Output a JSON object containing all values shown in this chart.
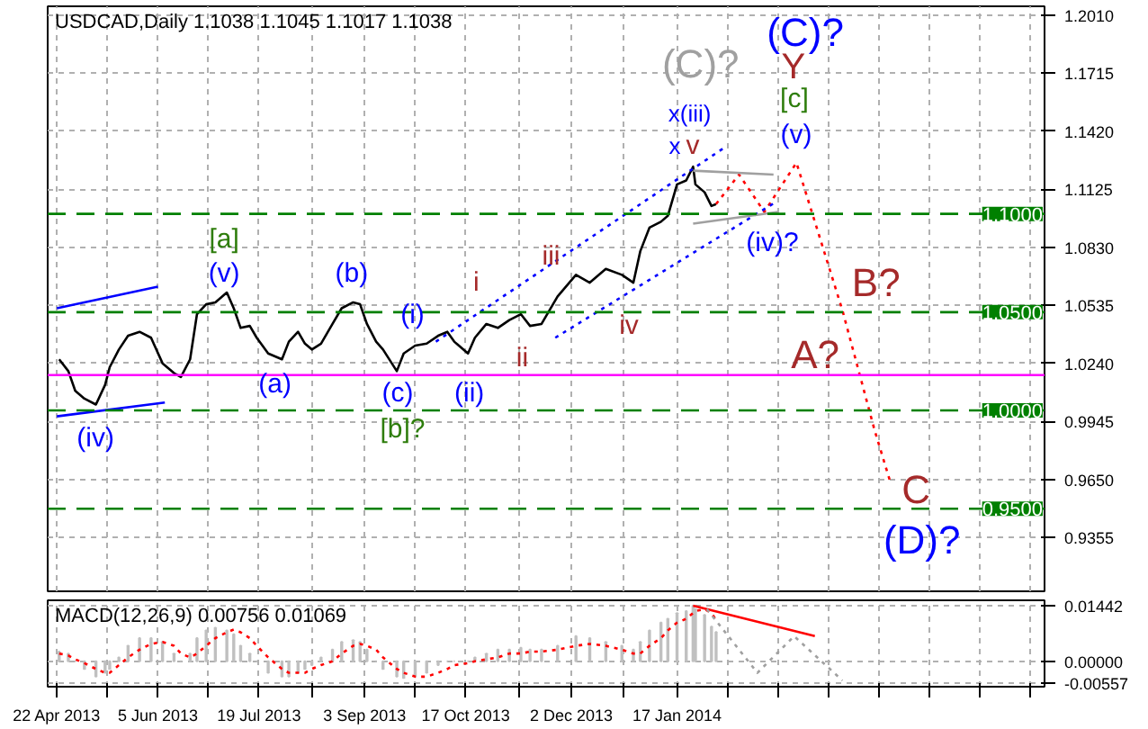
{
  "chart_data": [
    {
      "type": "line",
      "title": "USDCAD,Daily  1.1038 1.1045 1.1017 1.1038",
      "x": [
        "2013-04-23",
        "2013-04-27",
        "2013-04-30",
        "2013-05-04",
        "2013-05-09",
        "2013-05-13",
        "2013-05-15",
        "2013-05-19",
        "2013-05-23",
        "2013-05-28",
        "2013-06-02",
        "2013-06-07",
        "2013-06-12",
        "2013-06-15",
        "2013-06-19",
        "2013-06-22",
        "2013-06-26",
        "2013-06-30",
        "2013-07-05",
        "2013-07-08",
        "2013-07-11",
        "2013-07-15",
        "2013-07-18",
        "2013-07-23",
        "2013-07-29",
        "2013-08-01",
        "2013-08-05",
        "2013-08-08",
        "2013-08-11",
        "2013-08-15",
        "2013-08-20",
        "2013-08-24",
        "2013-08-29",
        "2013-09-01",
        "2013-09-04",
        "2013-09-08",
        "2013-09-11",
        "2013-09-17",
        "2013-09-20",
        "2013-09-25",
        "2013-09-30",
        "2013-10-05",
        "2013-10-09",
        "2013-10-12",
        "2013-10-18",
        "2013-10-21",
        "2013-10-26",
        "2013-10-31",
        "2013-11-05",
        "2013-11-10",
        "2013-11-14",
        "2013-11-19",
        "2013-11-26",
        "2013-12-04",
        "2013-12-10",
        "2013-12-17",
        "2013-12-24",
        "2013-12-29",
        "2014-01-01",
        "2014-01-05",
        "2014-01-10",
        "2014-01-13",
        "2014-01-17",
        "2014-01-21",
        "2014-01-24",
        "2014-01-25",
        "2014-01-29",
        "2014-02-01",
        "2014-02-03"
      ],
      "series": [
        {
          "color": "#000000",
          "values": [
            1.026,
            1.02,
            1.01,
            1.006,
            1.003,
            1.013,
            1.022,
            1.031,
            1.038,
            1.04,
            1.037,
            1.024,
            1.019,
            1.017,
            1.026,
            1.049,
            1.054,
            1.055,
            1.06,
            1.052,
            1.042,
            1.043,
            1.037,
            1.029,
            1.026,
            1.035,
            1.04,
            1.034,
            1.031,
            1.034,
            1.044,
            1.052,
            1.055,
            1.054,
            1.044,
            1.035,
            1.031,
            1.02,
            1.029,
            1.033,
            1.034,
            1.038,
            1.04,
            1.035,
            1.029,
            1.037,
            1.044,
            1.042,
            1.046,
            1.049,
            1.043,
            1.044,
            1.058,
            1.069,
            1.065,
            1.072,
            1.069,
            1.065,
            1.081,
            1.093,
            1.096,
            1.099,
            1.115,
            1.117,
            1.124,
            1.115,
            1.111,
            1.104,
            1.105
          ]
        },
        {
          "type": "line",
          "color": "#ff0000",
          "line_style": "dotted",
          "x": [
            "2014-02-03",
            "2014-02-13",
            "2014-02-24",
            "2014-03-10",
            "2014-03-30",
            "2014-04-13",
            "2014-04-20"
          ],
          "values": [
            1.105,
            1.12,
            1.101,
            1.126,
            1.051,
            0.99,
            0.963
          ]
        },
        {
          "type": "line",
          "color": "#0000ff",
          "line_style": "dotted",
          "x": [
            "2013-10-04",
            "2014-02-07"
          ],
          "values": [
            1.035,
            1.134
          ]
        },
        {
          "type": "line",
          "color": "#0000ff",
          "line_style": "dotted",
          "x": [
            "2013-11-25",
            "2014-03-01"
          ],
          "values": [
            1.037,
            1.106
          ]
        },
        {
          "type": "line",
          "color": "#0000ff",
          "line_style": "solid",
          "x": [
            "2013-04-22",
            "2013-06-05"
          ],
          "values": [
            1.052,
            1.063
          ]
        },
        {
          "type": "line",
          "color": "#0000ff",
          "line_style": "solid",
          "x": [
            "2013-04-22",
            "2013-06-08"
          ],
          "values": [
            0.997,
            1.004
          ]
        },
        {
          "type": "line",
          "color": "#a0a0a0",
          "line_style": "solid",
          "x": [
            "2014-01-24",
            "2014-02-28"
          ],
          "values": [
            1.122,
            1.12
          ]
        },
        {
          "type": "line",
          "color": "#a0a0a0",
          "line_style": "solid",
          "x": [
            "2014-01-24",
            "2014-03-02"
          ],
          "values": [
            1.095,
            1.101
          ]
        }
      ],
      "xlim": [
        "2013-04-18",
        "2014-06-26"
      ],
      "ylim": [
        0.908,
        1.2056
      ],
      "xticks": [
        {
          "value": "2013-04-22",
          "label": null
        },
        {
          "value": "2013-05-14",
          "label": null
        },
        {
          "value": "2013-06-05",
          "label": null
        },
        {
          "value": "2013-06-27",
          "label": null
        },
        {
          "value": "2013-07-19",
          "label": null
        },
        {
          "value": "2013-08-11",
          "label": null
        },
        {
          "value": "2013-09-03",
          "label": null
        },
        {
          "value": "2013-09-25",
          "label": null
        },
        {
          "value": "2013-10-17",
          "label": null
        },
        {
          "value": "2013-11-09",
          "label": null
        },
        {
          "value": "2013-12-02",
          "label": null
        },
        {
          "value": "2013-12-25",
          "label": null
        },
        {
          "value": "2014-01-17",
          "label": null
        },
        {
          "value": "2014-02-08",
          "label": null
        },
        {
          "value": "2014-03-02",
          "label": null
        },
        {
          "value": "2014-03-24",
          "label": null
        },
        {
          "value": "2014-04-15",
          "label": null
        },
        {
          "value": "2014-05-07",
          "label": null
        },
        {
          "value": "2014-05-29",
          "label": null
        },
        {
          "value": "2014-06-20",
          "label": null
        }
      ],
      "yticks": [
        {
          "value": 1.201,
          "label": "1.2010"
        },
        {
          "value": 1.1715,
          "label": "1.1715"
        },
        {
          "value": 1.142,
          "label": "1.1420"
        },
        {
          "value": 1.1125,
          "label": "1.1125"
        },
        {
          "value": 1.083,
          "label": "1.0830"
        },
        {
          "value": 1.0535,
          "label": "1.0535"
        },
        {
          "value": 1.024,
          "label": "1.0240"
        },
        {
          "value": 0.9945,
          "label": "0.9945"
        },
        {
          "value": 0.965,
          "label": "0.9650"
        },
        {
          "value": 0.9355,
          "label": "0.9355"
        }
      ],
      "tick_labels": "y",
      "grid": true,
      "ref_lines": [
        {
          "axis": "y",
          "value": 1.1,
          "label": "1.1000",
          "color": "#008000",
          "line_style": "dashed"
        },
        {
          "axis": "y",
          "value": 1.05,
          "label": "1.0500",
          "color": "#008000",
          "line_style": "dashed"
        },
        {
          "axis": "y",
          "value": 1.0,
          "label": "1.0000",
          "color": "#008000",
          "line_style": "dashed"
        },
        {
          "axis": "y",
          "value": 0.95,
          "label": "0.9500",
          "color": "#008000",
          "line_style": "dashed"
        },
        {
          "axis": "y",
          "value": 1.018,
          "color": "#ff00ff",
          "line_style": "solid"
        }
      ],
      "annotations": [
        "(iv)",
        "[a]",
        "(v)",
        "(a)",
        "(b)",
        "(i)",
        "(c)",
        "[b]?",
        "(ii)",
        "i",
        "ii",
        "iii",
        "iv",
        "x(iii)",
        "x",
        "v",
        "(C)?",
        "(C)?",
        "Y",
        "[c]",
        "(v)",
        "(iv)?",
        "B?",
        "A?",
        "C",
        "(D)?"
      ]
    },
    {
      "type": "bar",
      "title": "MACD(12,26,9) 0.00756 0.01069",
      "x": [
        "2013-04-23",
        "2013-04-27",
        "2013-04-30",
        "2013-05-04",
        "2013-05-09",
        "2013-05-13",
        "2013-05-15",
        "2013-05-19",
        "2013-05-23",
        "2013-05-28",
        "2013-06-02",
        "2013-06-07",
        "2013-06-12",
        "2013-06-15",
        "2013-06-19",
        "2013-06-22",
        "2013-06-26",
        "2013-06-30",
        "2013-07-05",
        "2013-07-08",
        "2013-07-11",
        "2013-07-15",
        "2013-07-18",
        "2013-07-23",
        "2013-07-29",
        "2013-08-01",
        "2013-08-05",
        "2013-08-08",
        "2013-08-11",
        "2013-08-15",
        "2013-08-20",
        "2013-08-24",
        "2013-08-29",
        "2013-09-01",
        "2013-09-04",
        "2013-09-08",
        "2013-09-11",
        "2013-09-17",
        "2013-09-20",
        "2013-09-25",
        "2013-09-30",
        "2013-10-05",
        "2013-10-09",
        "2013-10-12",
        "2013-10-18",
        "2013-10-21",
        "2013-10-26",
        "2013-10-31",
        "2013-11-05",
        "2013-11-10",
        "2013-11-14",
        "2013-11-19",
        "2013-11-26",
        "2013-12-04",
        "2013-12-10",
        "2013-12-17",
        "2013-12-24",
        "2013-12-29",
        "2014-01-01",
        "2014-01-05",
        "2014-01-10",
        "2014-01-13",
        "2014-01-17",
        "2014-01-21",
        "2014-01-24",
        "2014-01-25",
        "2014-01-29",
        "2014-02-01",
        "2014-02-03"
      ],
      "series": [
        {
          "color": "#c0c0c0",
          "values": [
            0.0025,
            0.002,
            0,
            -0.002,
            -0.004,
            -0.003,
            -0.002,
            0.001,
            0.004,
            0.006,
            0.006,
            0.005,
            0.002,
            0,
            0.002,
            0.006,
            0.008,
            0.0087,
            0.008,
            0.007,
            0.004,
            0.002,
            0,
            -0.003,
            -0.004,
            -0.004,
            -0.003,
            -0.002,
            -0.001,
            0.001,
            0.003,
            0.005,
            0.0055,
            0.005,
            0.003,
            0,
            -0.002,
            -0.004,
            -0.0043,
            -0.004,
            -0.003,
            -0.001,
            0,
            0,
            0,
            0.001,
            0.002,
            0.003,
            0.003,
            0.0035,
            0.003,
            0.003,
            0.004,
            0.0065,
            0.006,
            0.005,
            0.004,
            0.003,
            0.005,
            0.008,
            0.01,
            0.011,
            0.0125,
            0.013,
            0.0144,
            0.0135,
            0.012,
            0.009,
            0.0076
          ]
        },
        {
          "type": "line",
          "color": "#ff0000",
          "line_style": "dotted",
          "values": [
            0.002,
            0.0015,
            0.0005,
            -0.0005,
            -0.002,
            -0.003,
            -0.003,
            -0.001,
            0.001,
            0.003,
            0.0045,
            0.005,
            0.004,
            0.002,
            0.001,
            0.002,
            0.004,
            0.006,
            0.0075,
            0.0082,
            0.0075,
            0.006,
            0.004,
            0.001,
            -0.002,
            -0.003,
            -0.003,
            -0.003,
            -0.002,
            -0.001,
            0,
            0.002,
            0.004,
            0.0045,
            0.004,
            0.003,
            0.001,
            -0.002,
            -0.003,
            -0.004,
            -0.004,
            -0.003,
            -0.002,
            -0.001,
            -0.0005,
            0,
            0.0005,
            0.001,
            0.002,
            0.002,
            0.0025,
            0.0025,
            0.003,
            0.004,
            0.0045,
            0.004,
            0.003,
            0.002,
            0.002,
            0.004,
            0.006,
            0.008,
            0.01,
            0.011,
            0.0125,
            0.013,
            0.0135,
            0.0125,
            0.0107
          ]
        },
        {
          "type": "line",
          "color": "#ff0000",
          "line_style": "solid",
          "x": [
            "2014-01-24",
            "2014-03-18"
          ],
          "values": [
            0.0144,
            0.0065
          ]
        },
        {
          "type": "line",
          "color": "#a0a0a0",
          "line_style": "dotted",
          "x": [
            "2014-01-30",
            "2014-02-21",
            "2014-03-09",
            "2014-03-30"
          ],
          "values": [
            0.0135,
            -0.003,
            0.0065,
            -0.005
          ]
        }
      ],
      "xlim": [
        "2013-04-18",
        "2014-06-26"
      ],
      "ylim": [
        -0.0066,
        0.0158
      ],
      "xticks": [
        {
          "value": "2013-04-22",
          "label": "22 Apr 2013"
        },
        {
          "value": "2013-05-14",
          "label": null
        },
        {
          "value": "2013-06-05",
          "label": "5 Jun 2013"
        },
        {
          "value": "2013-06-27",
          "label": null
        },
        {
          "value": "2013-07-19",
          "label": "19 Jul 2013"
        },
        {
          "value": "2013-08-11",
          "label": null
        },
        {
          "value": "2013-09-03",
          "label": "3 Sep 2013"
        },
        {
          "value": "2013-09-25",
          "label": null
        },
        {
          "value": "2013-10-17",
          "label": "17 Oct 2013"
        },
        {
          "value": "2013-11-09",
          "label": null
        },
        {
          "value": "2013-12-02",
          "label": "2 Dec 2013"
        },
        {
          "value": "2013-12-25",
          "label": null
        },
        {
          "value": "2014-01-17",
          "label": "17 Jan 2014"
        },
        {
          "value": "2014-02-08",
          "label": null
        },
        {
          "value": "2014-03-02",
          "label": null
        },
        {
          "value": "2014-03-24",
          "label": null
        },
        {
          "value": "2014-04-15",
          "label": null
        },
        {
          "value": "2014-05-07",
          "label": null
        },
        {
          "value": "2014-05-29",
          "label": null
        },
        {
          "value": "2014-06-20",
          "label": null
        }
      ],
      "yticks": [
        {
          "value": 0.01442,
          "label": "0.01442"
        },
        {
          "value": 0,
          "label": "0.00000"
        },
        {
          "value": -0.00557,
          "label": "-0.00557"
        }
      ],
      "grid": true
    }
  ]
}
